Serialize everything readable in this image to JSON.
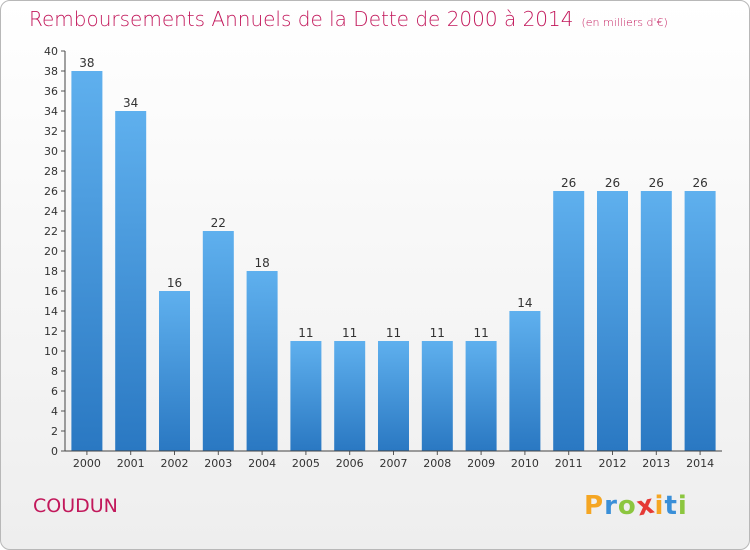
{
  "chart_data": {
    "type": "bar",
    "title": "Remboursements Annuels de la Dette de 2000 à 2014",
    "subtitle": "(en milliers d'€)",
    "categories": [
      "2000",
      "2001",
      "2002",
      "2003",
      "2004",
      "2005",
      "2006",
      "2007",
      "2008",
      "2009",
      "2010",
      "2011",
      "2012",
      "2013",
      "2014"
    ],
    "values": [
      38,
      34,
      16,
      22,
      18,
      11,
      11,
      11,
      11,
      11,
      14,
      26,
      26,
      26,
      26
    ],
    "xlabel": "",
    "ylabel": "",
    "ylim": [
      0,
      40
    ],
    "ytick_step": 2,
    "grid": false,
    "bar_color": "#3a8fd8"
  },
  "footer": {
    "commune": "COUDUN",
    "logo_letters": [
      "P",
      "r",
      "o",
      "x",
      "i",
      "t",
      "i"
    ],
    "logo_colors": [
      "#f5a623",
      "#3a8fd8",
      "#8cc63f",
      "#e53935",
      "#f5a623",
      "#3a8fd8",
      "#8cc63f"
    ]
  }
}
